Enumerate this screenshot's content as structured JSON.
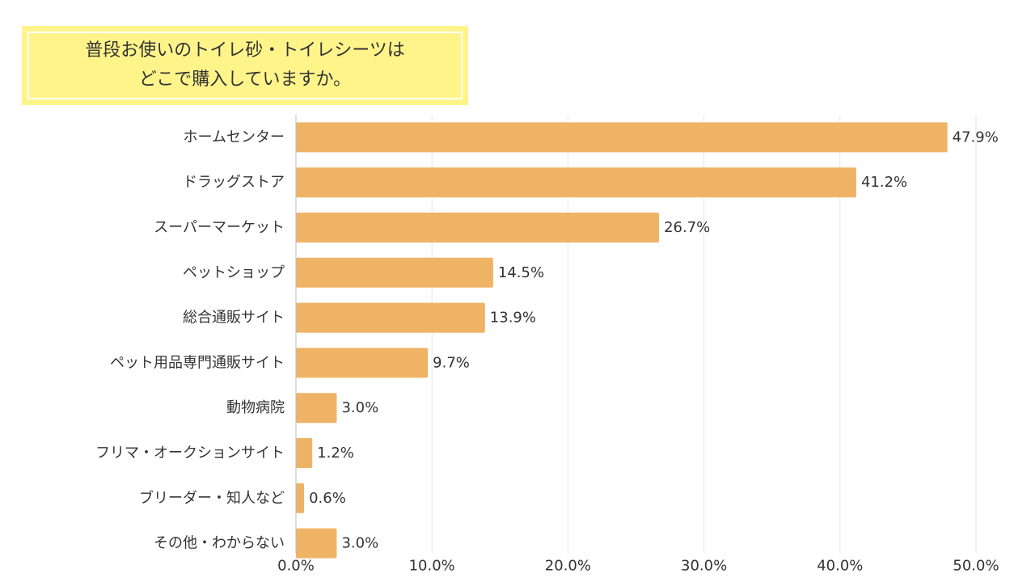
{
  "title": {
    "line1": "普段お使いのトイレ砂・トイレシーツは",
    "line2": "どこで購入していますか。"
  },
  "colors": {
    "bar": "#efb366",
    "title_bg": "#fff48a",
    "grid": "#e5e5e5",
    "text": "#333333"
  },
  "chart_data": {
    "type": "bar",
    "orientation": "horizontal",
    "categories": [
      "ホームセンター",
      "ドラッグストア",
      "スーパーマーケット",
      "ペットショップ",
      "総合通販サイト",
      "ペット用品専門通販サイト",
      "動物病院",
      "フリマ・オークションサイト",
      "ブリーダー・知人など",
      "その他・わからない"
    ],
    "values": [
      47.9,
      41.2,
      26.7,
      14.5,
      13.9,
      9.7,
      3.0,
      1.2,
      0.6,
      3.0
    ],
    "value_labels": [
      "47.9%",
      "41.2%",
      "26.7%",
      "14.5%",
      "13.9%",
      "9.7%",
      "3.0%",
      "1.2%",
      "0.6%",
      "3.0%"
    ],
    "xlim": [
      0,
      50
    ],
    "x_ticks": [
      0,
      10,
      20,
      30,
      40,
      50
    ],
    "x_tick_labels": [
      "0.0%",
      "10.0%",
      "20.0%",
      "30.0%",
      "40.0%",
      "50.0%"
    ],
    "grid": true,
    "legend": "none"
  }
}
